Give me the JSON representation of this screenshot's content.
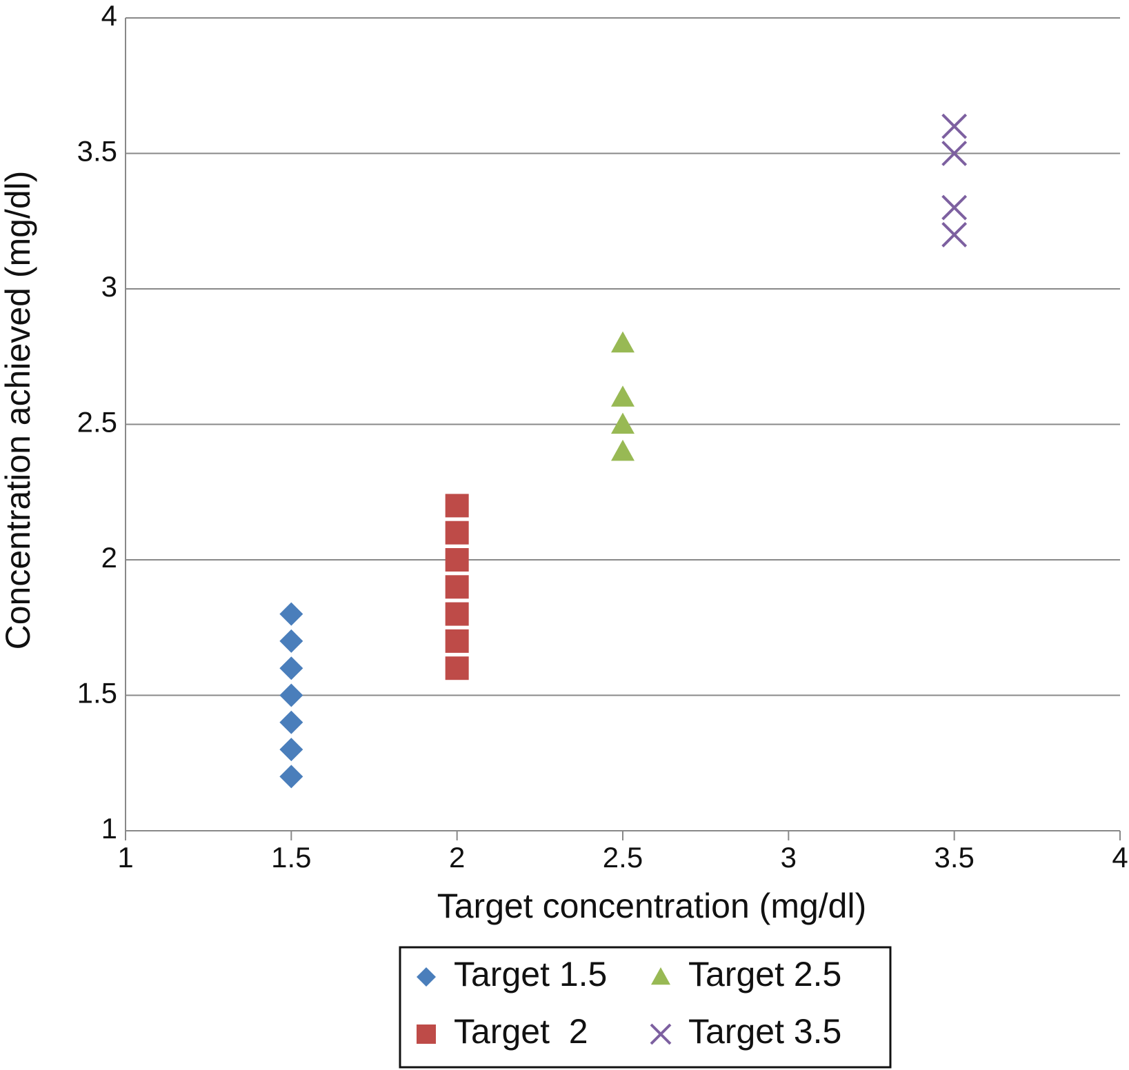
{
  "chart_data": {
    "type": "scatter",
    "xlabel": "Target concentration (mg/dl)",
    "ylabel": "Concentration achieved (mg/dl)",
    "xlim": [
      1,
      4
    ],
    "xticks": [
      1,
      1.5,
      2,
      2.5,
      3,
      3.5,
      4
    ],
    "ylim": [
      1,
      4
    ],
    "yticks": [
      1,
      1.5,
      2,
      2.5,
      3,
      3.5,
      4
    ],
    "grid": true,
    "legend": "bottom",
    "series": [
      {
        "name": "Target 1.5",
        "color": "#4a7ebb",
        "marker": "diamond",
        "x": [
          1.5,
          1.5,
          1.5,
          1.5,
          1.5,
          1.5,
          1.5
        ],
        "values": [
          1.2,
          1.3,
          1.4,
          1.5,
          1.6,
          1.7,
          1.8
        ]
      },
      {
        "name": "Target  2",
        "color": "#be4b48",
        "marker": "square",
        "x": [
          2,
          2,
          2,
          2,
          2,
          2,
          2
        ],
        "values": [
          1.6,
          1.7,
          1.8,
          1.9,
          2.0,
          2.1,
          2.2
        ]
      },
      {
        "name": "Target 2.5",
        "color": "#98b954",
        "marker": "triangle",
        "x": [
          2.5,
          2.5,
          2.5,
          2.5
        ],
        "values": [
          2.4,
          2.5,
          2.6,
          2.8
        ]
      },
      {
        "name": "Target 3.5",
        "color": "#7d60a0",
        "marker": "x",
        "x": [
          3.5,
          3.5,
          3.5,
          3.5
        ],
        "values": [
          3.2,
          3.3,
          3.5,
          3.6
        ]
      }
    ]
  }
}
